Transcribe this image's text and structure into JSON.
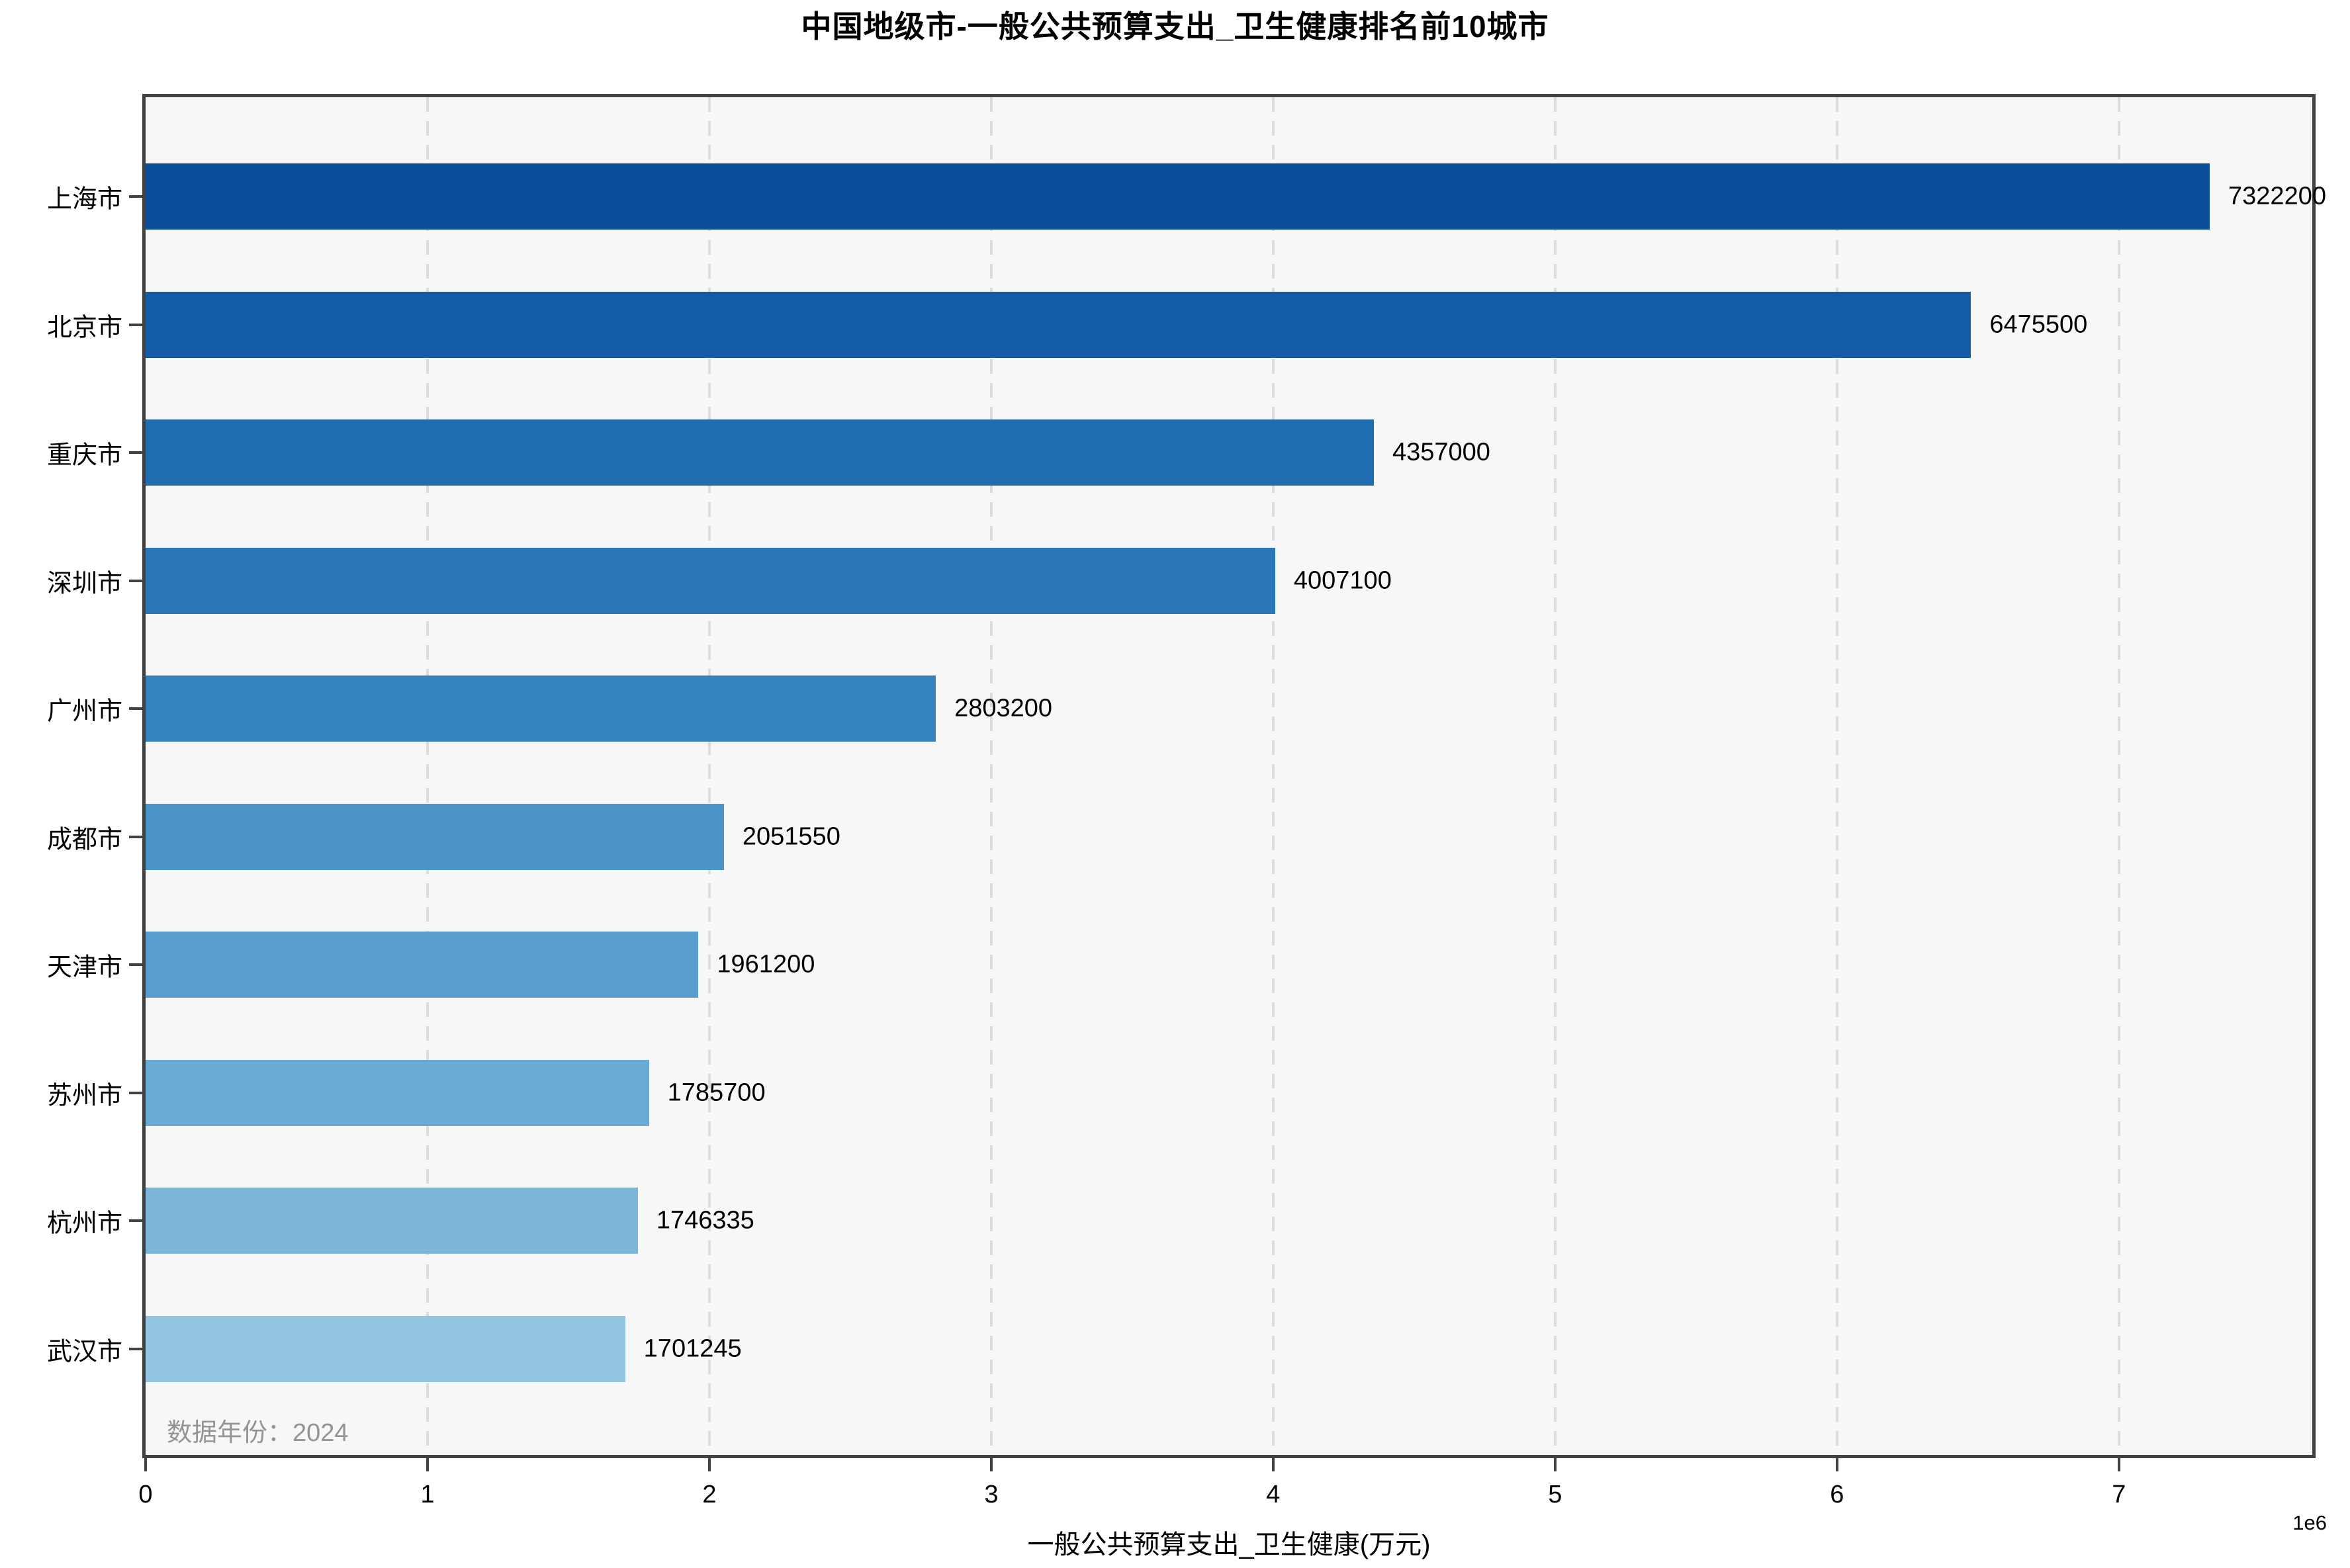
{
  "chart_data": {
    "type": "bar",
    "orientation": "horizontal",
    "title": "中国地级市-一般公共预算支出_卫生健康排名前10城市",
    "xlabel": "一般公共预算支出_卫生健康(万元)",
    "ylabel": "",
    "categories": [
      "上海市",
      "北京市",
      "重庆市",
      "深圳市",
      "广州市",
      "成都市",
      "天津市",
      "苏州市",
      "杭州市",
      "武汉市"
    ],
    "values": [
      7322200,
      6475500,
      4357000,
      4007100,
      2803200,
      2051550,
      1961200,
      1785700,
      1746335,
      1701245
    ],
    "value_labels": [
      "7322200",
      "6475500",
      "4357000",
      "4007100",
      "2803200",
      "2051550",
      "1961200",
      "1785700",
      "1746335",
      "1701245"
    ],
    "bar_colors": [
      "#0b4f9b",
      "#145ca6",
      "#206cb1",
      "#2b76b7",
      "#3583bf",
      "#4a94c8",
      "#589ecd",
      "#69abd4",
      "#7cb7da",
      "#94c5e1"
    ],
    "xlim": [
      0,
      7686000
    ],
    "xticks": [
      0,
      1,
      2,
      3,
      4,
      5,
      6,
      7
    ],
    "xtick_unit": 1000000,
    "x_offset_label": "1e6",
    "grid": "vertical-dashed",
    "legend": "none",
    "annotation": "数据年份：2024"
  },
  "colors": {
    "figure_bg": "#ffffff",
    "plot_bg": "#f7f7f7",
    "spine": "#424242",
    "grid": "#dcdcdc",
    "text": "#000000",
    "annotation_text": "#949494"
  }
}
